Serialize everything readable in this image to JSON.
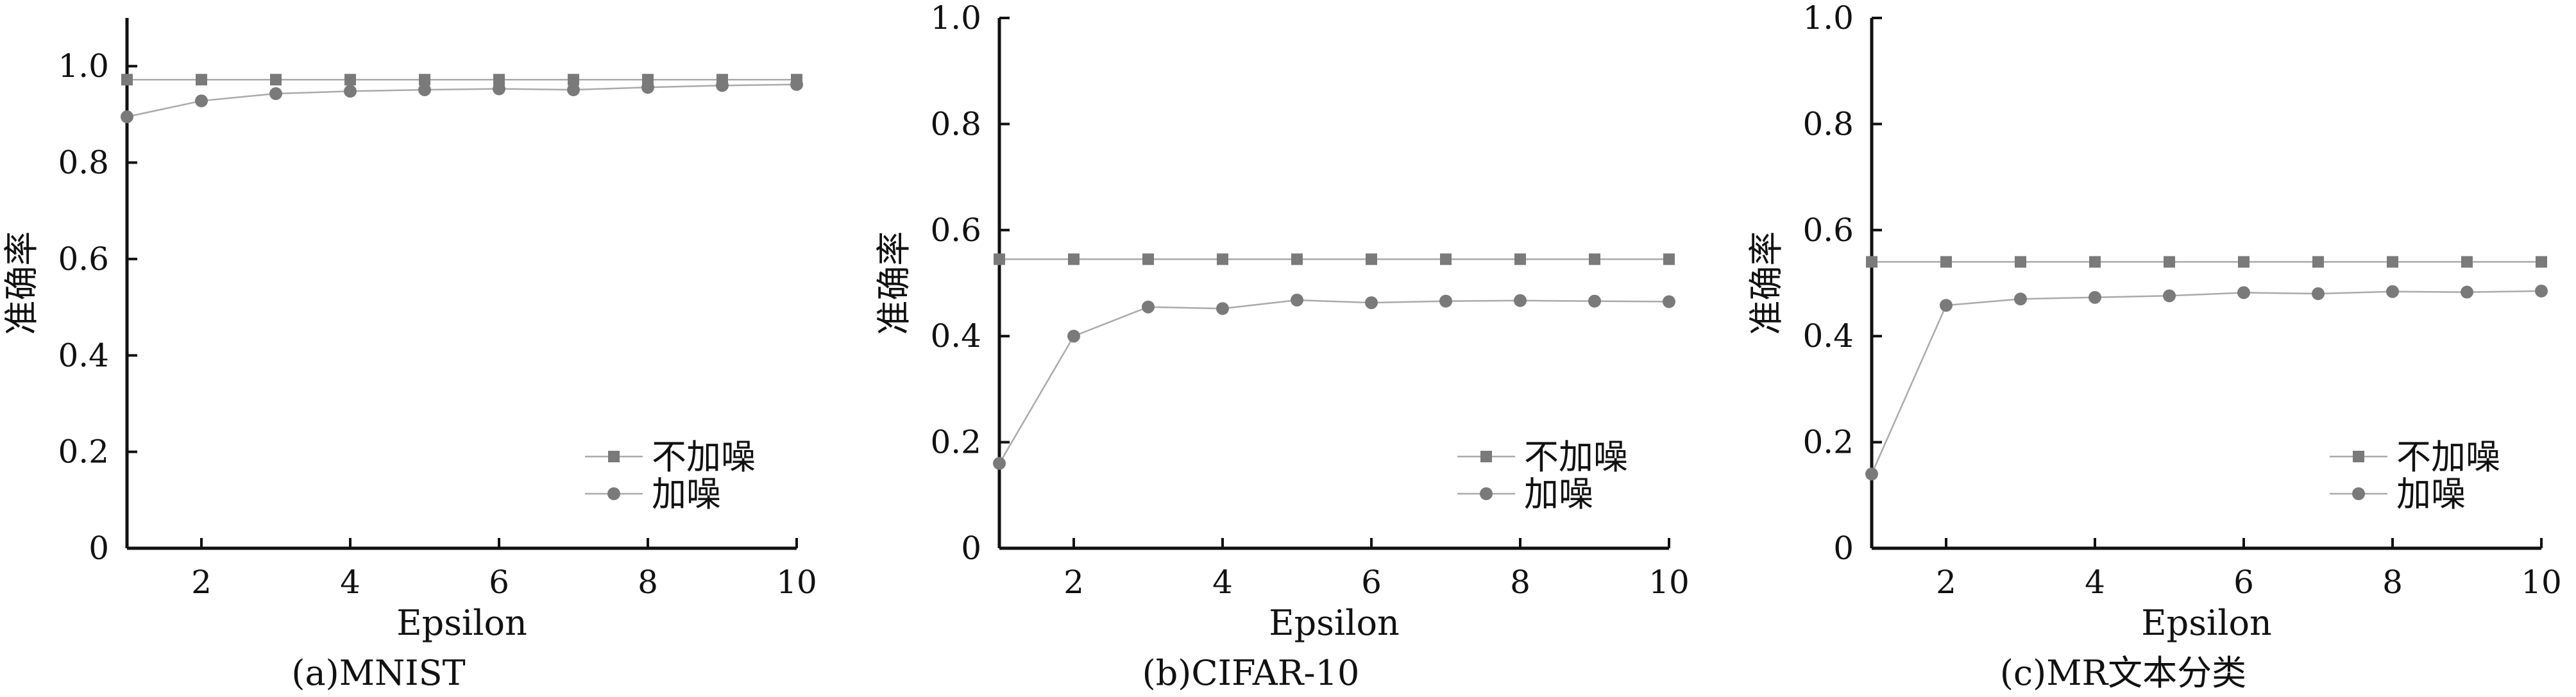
{
  "chart_data": [
    {
      "type": "line",
      "caption": "(a)MNIST",
      "xlabel": "Epsilon",
      "ylabel": "准确率",
      "xlim": [
        1,
        10
      ],
      "ylim": [
        0,
        1.1
      ],
      "xticks": [
        2,
        4,
        6,
        8,
        10
      ],
      "yticks": [
        0,
        0.2,
        0.4,
        0.6,
        0.8,
        1.0
      ],
      "ytick_labels": [
        "0",
        "0.2",
        "0.4",
        "0.6",
        "0.8",
        "1.0"
      ],
      "legend_position": "bottom-right",
      "x": [
        1,
        2,
        3,
        4,
        5,
        6,
        7,
        8,
        9,
        10
      ],
      "series": [
        {
          "name": "不加噪",
          "marker": "square",
          "values": [
            0.972,
            0.972,
            0.972,
            0.972,
            0.972,
            0.972,
            0.972,
            0.972,
            0.972,
            0.972
          ]
        },
        {
          "name": "加噪",
          "marker": "circle",
          "values": [
            0.895,
            0.928,
            0.943,
            0.948,
            0.951,
            0.953,
            0.951,
            0.956,
            0.96,
            0.962
          ]
        }
      ]
    },
    {
      "type": "line",
      "caption": "(b)CIFAR-10",
      "xlabel": "Epsilon",
      "ylabel": "准确率",
      "xlim": [
        1,
        10
      ],
      "ylim": [
        0,
        1.0
      ],
      "xticks": [
        2,
        4,
        6,
        8,
        10
      ],
      "yticks": [
        0,
        0.2,
        0.4,
        0.6,
        0.8,
        1.0
      ],
      "ytick_labels": [
        "0",
        "0.2",
        "0.4",
        "0.6",
        "0.8",
        "1.0"
      ],
      "legend_position": "bottom-right",
      "x": [
        1,
        2,
        3,
        4,
        5,
        6,
        7,
        8,
        9,
        10
      ],
      "series": [
        {
          "name": "不加噪",
          "marker": "square",
          "values": [
            0.545,
            0.545,
            0.545,
            0.545,
            0.545,
            0.545,
            0.545,
            0.545,
            0.545,
            0.545
          ]
        },
        {
          "name": "加噪",
          "marker": "circle",
          "values": [
            0.16,
            0.4,
            0.455,
            0.452,
            0.468,
            0.463,
            0.466,
            0.467,
            0.466,
            0.465
          ]
        }
      ]
    },
    {
      "type": "line",
      "caption": "(c)MR文本分类",
      "xlabel": "Epsilon",
      "ylabel": "准确率",
      "xlim": [
        1,
        10
      ],
      "ylim": [
        0,
        1.0
      ],
      "xticks": [
        2,
        4,
        6,
        8,
        10
      ],
      "yticks": [
        0,
        0.2,
        0.4,
        0.6,
        0.8,
        1.0
      ],
      "ytick_labels": [
        "0",
        "0.2",
        "0.4",
        "0.6",
        "0.8",
        "1.0"
      ],
      "legend_position": "bottom-right",
      "x": [
        1,
        2,
        3,
        4,
        5,
        6,
        7,
        8,
        9,
        10
      ],
      "series": [
        {
          "name": "不加噪",
          "marker": "square",
          "values": [
            0.54,
            0.54,
            0.54,
            0.54,
            0.54,
            0.54,
            0.54,
            0.54,
            0.54,
            0.54
          ]
        },
        {
          "name": "加噪",
          "marker": "circle",
          "values": [
            0.14,
            0.458,
            0.47,
            0.473,
            0.476,
            0.482,
            0.48,
            0.484,
            0.483,
            0.485
          ]
        }
      ]
    }
  ],
  "colors": {
    "axis": "#111111",
    "line": "#aaaaaa",
    "marker": "#7a7a7a"
  }
}
